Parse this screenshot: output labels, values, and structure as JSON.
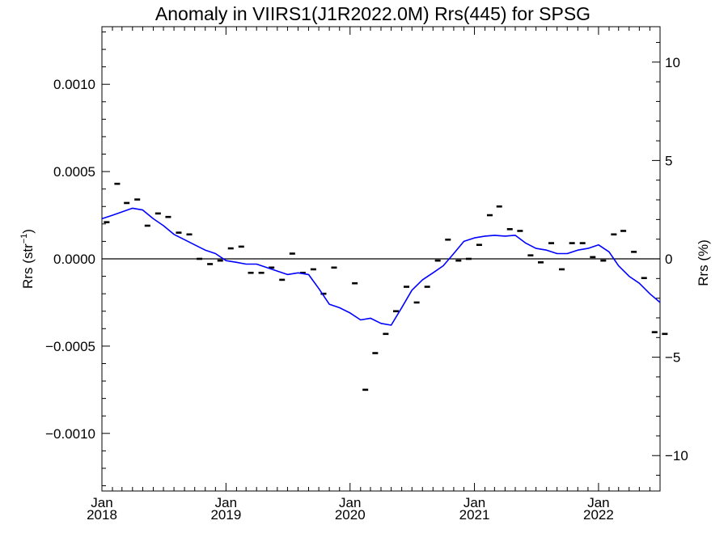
{
  "chart_data": {
    "type": "line",
    "title": "Anomaly in VIIRS1(J1R2022.0M) Rrs(445) for SPSG",
    "ylabel_left_base": "Rrs (str",
    "ylabel_left_sup": "−1",
    "ylabel_left_close": ")",
    "ylabel_right": "Rrs (%)",
    "x_axis": {
      "range": [
        "2018-01-01",
        "2022-07-01"
      ],
      "ticks": [
        {
          "date": "2018-01-01",
          "line1": "Jan",
          "line2": "2018"
        },
        {
          "date": "2019-01-01",
          "line1": "Jan",
          "line2": "2019"
        },
        {
          "date": "2020-01-01",
          "line1": "Jan",
          "line2": "2020"
        },
        {
          "date": "2021-01-01",
          "line1": "Jan",
          "line2": "2021"
        },
        {
          "date": "2022-01-01",
          "line1": "Jan",
          "line2": "2022"
        }
      ]
    },
    "y_left": {
      "ylim": [
        -0.00133,
        0.00133
      ],
      "ticks": [
        {
          "value": 0.001,
          "label": "0.0010"
        },
        {
          "value": 0.0005,
          "label": "0.0005"
        },
        {
          "value": 0.0,
          "label": "0.0000"
        },
        {
          "value": -0.0005,
          "label": "−0.0005"
        },
        {
          "value": -0.001,
          "label": "−0.0010"
        }
      ]
    },
    "y_right": {
      "ylim": [
        -11.8,
        11.8
      ],
      "ticks": [
        {
          "value": 10,
          "label": "10"
        },
        {
          "value": 5,
          "label": "5"
        },
        {
          "value": 0,
          "label": "0"
        },
        {
          "value": -5,
          "label": "−5"
        },
        {
          "value": -10,
          "label": "−10"
        }
      ]
    },
    "zero_line": true,
    "grid": false,
    "legend": "none",
    "series": [
      {
        "kind": "monthly-anomaly-markers",
        "color": "#000000",
        "points": [
          {
            "x": "2018-01",
            "y": 0.00021
          },
          {
            "x": "2018-02",
            "y": 0.00043
          },
          {
            "x": "2018-03",
            "y": 0.00032
          },
          {
            "x": "2018-04",
            "y": 0.00034
          },
          {
            "x": "2018-05",
            "y": 0.00019
          },
          {
            "x": "2018-06",
            "y": 0.00026
          },
          {
            "x": "2018-07",
            "y": 0.00024
          },
          {
            "x": "2018-08",
            "y": 0.00015
          },
          {
            "x": "2018-09",
            "y": 0.00014
          },
          {
            "x": "2018-10",
            "y": 0.0
          },
          {
            "x": "2018-11",
            "y": -3e-05
          },
          {
            "x": "2018-12",
            "y": -1e-05
          },
          {
            "x": "2019-01",
            "y": 6e-05
          },
          {
            "x": "2019-02",
            "y": 7e-05
          },
          {
            "x": "2019-03",
            "y": -8e-05
          },
          {
            "x": "2019-04",
            "y": -8e-05
          },
          {
            "x": "2019-05",
            "y": -5e-05
          },
          {
            "x": "2019-06",
            "y": -0.00012
          },
          {
            "x": "2019-07",
            "y": 3e-05
          },
          {
            "x": "2019-08",
            "y": -8e-05
          },
          {
            "x": "2019-09",
            "y": -6e-05
          },
          {
            "x": "2019-10",
            "y": -0.0002
          },
          {
            "x": "2019-11",
            "y": -5e-05
          },
          {
            "x": "2020-01",
            "y": -0.00014
          },
          {
            "x": "2020-02",
            "y": -0.00075
          },
          {
            "x": "2020-03",
            "y": -0.00054
          },
          {
            "x": "2020-04",
            "y": -0.00043
          },
          {
            "x": "2020-05",
            "y": -0.0003
          },
          {
            "x": "2020-06",
            "y": -0.00016
          },
          {
            "x": "2020-07",
            "y": -0.00025
          },
          {
            "x": "2020-08",
            "y": -0.00016
          },
          {
            "x": "2020-09",
            "y": -1e-05
          },
          {
            "x": "2020-10",
            "y": 0.00011
          },
          {
            "x": "2020-11",
            "y": -1e-05
          },
          {
            "x": "2020-12",
            "y": 0.0
          },
          {
            "x": "2021-01",
            "y": 8e-05
          },
          {
            "x": "2021-02",
            "y": 0.00025
          },
          {
            "x": "2021-03",
            "y": 0.0003
          },
          {
            "x": "2021-04",
            "y": 0.00017
          },
          {
            "x": "2021-05",
            "y": 0.00016
          },
          {
            "x": "2021-06",
            "y": 2e-05
          },
          {
            "x": "2021-07",
            "y": -2e-05
          },
          {
            "x": "2021-08",
            "y": 9e-05
          },
          {
            "x": "2021-09",
            "y": -6e-05
          },
          {
            "x": "2021-10",
            "y": 9e-05
          },
          {
            "x": "2021-11",
            "y": 9e-05
          },
          {
            "x": "2021-12",
            "y": 1e-05
          },
          {
            "x": "2022-01",
            "y": -1e-05
          },
          {
            "x": "2022-02",
            "y": 0.00014
          },
          {
            "x": "2022-03",
            "y": 0.00016
          },
          {
            "x": "2022-04",
            "y": 4e-05
          },
          {
            "x": "2022-05",
            "y": -0.00011
          },
          {
            "x": "2022-06",
            "y": -0.00042
          },
          {
            "x": "2022-07",
            "y": -0.00043
          }
        ]
      },
      {
        "kind": "running-mean-line",
        "color": "#0000ff",
        "points": [
          {
            "x": "2018-01-01",
            "y": 0.00023
          },
          {
            "x": "2018-02-01",
            "y": 0.00025
          },
          {
            "x": "2018-04-01",
            "y": 0.00029
          },
          {
            "x": "2018-05-01",
            "y": 0.00028
          },
          {
            "x": "2018-06-01",
            "y": 0.00023
          },
          {
            "x": "2018-07-01",
            "y": 0.00019
          },
          {
            "x": "2018-08-01",
            "y": 0.00014
          },
          {
            "x": "2018-09-01",
            "y": 0.00011
          },
          {
            "x": "2018-10-01",
            "y": 8e-05
          },
          {
            "x": "2018-11-01",
            "y": 5e-05
          },
          {
            "x": "2018-12-01",
            "y": 3e-05
          },
          {
            "x": "2019-01-01",
            "y": -1e-05
          },
          {
            "x": "2019-02-01",
            "y": -2e-05
          },
          {
            "x": "2019-03-01",
            "y": -3e-05
          },
          {
            "x": "2019-04-01",
            "y": -3e-05
          },
          {
            "x": "2019-05-01",
            "y": -5e-05
          },
          {
            "x": "2019-06-01",
            "y": -7e-05
          },
          {
            "x": "2019-07-01",
            "y": -9e-05
          },
          {
            "x": "2019-08-01",
            "y": -8e-05
          },
          {
            "x": "2019-09-01",
            "y": -9e-05
          },
          {
            "x": "2019-10-01",
            "y": -0.00017
          },
          {
            "x": "2019-11-01",
            "y": -0.00026
          },
          {
            "x": "2019-12-01",
            "y": -0.00028
          },
          {
            "x": "2020-01-01",
            "y": -0.00031
          },
          {
            "x": "2020-02-01",
            "y": -0.00035
          },
          {
            "x": "2020-03-01",
            "y": -0.00034
          },
          {
            "x": "2020-04-01",
            "y": -0.00037
          },
          {
            "x": "2020-05-01",
            "y": -0.00038
          },
          {
            "x": "2020-06-01",
            "y": -0.00028
          },
          {
            "x": "2020-07-01",
            "y": -0.00018
          },
          {
            "x": "2020-08-01",
            "y": -0.00012
          },
          {
            "x": "2020-09-01",
            "y": -8e-05
          },
          {
            "x": "2020-10-01",
            "y": -4e-05
          },
          {
            "x": "2020-11-01",
            "y": 3e-05
          },
          {
            "x": "2020-12-01",
            "y": 0.0001
          },
          {
            "x": "2021-01-01",
            "y": 0.00012
          },
          {
            "x": "2021-02-01",
            "y": 0.00013
          },
          {
            "x": "2021-03-01",
            "y": 0.000135
          },
          {
            "x": "2021-04-01",
            "y": 0.00013
          },
          {
            "x": "2021-05-01",
            "y": 0.000135
          },
          {
            "x": "2021-06-01",
            "y": 9e-05
          },
          {
            "x": "2021-07-01",
            "y": 6e-05
          },
          {
            "x": "2021-08-01",
            "y": 5e-05
          },
          {
            "x": "2021-09-01",
            "y": 3e-05
          },
          {
            "x": "2021-10-01",
            "y": 3e-05
          },
          {
            "x": "2021-11-01",
            "y": 5e-05
          },
          {
            "x": "2021-12-01",
            "y": 6e-05
          },
          {
            "x": "2022-01-01",
            "y": 8e-05
          },
          {
            "x": "2022-02-01",
            "y": 4e-05
          },
          {
            "x": "2022-03-01",
            "y": -4e-05
          },
          {
            "x": "2022-04-01",
            "y": -0.0001
          },
          {
            "x": "2022-05-01",
            "y": -0.00014
          },
          {
            "x": "2022-06-01",
            "y": -0.0002
          },
          {
            "x": "2022-07-01",
            "y": -0.00025
          }
        ]
      }
    ]
  }
}
